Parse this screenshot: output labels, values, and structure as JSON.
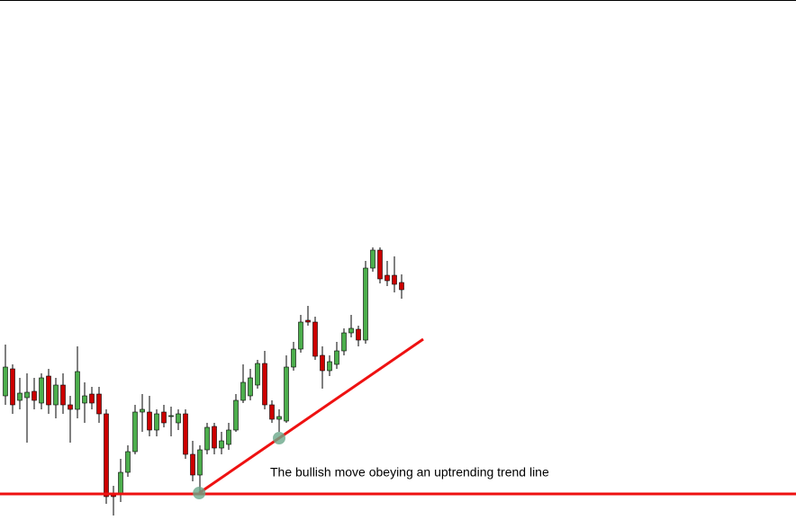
{
  "chart_data": {
    "type": "candlestick",
    "annotation": "The bullish move obeying an uptrending trend line",
    "categories": [
      null,
      null,
      null,
      null,
      null,
      null,
      null,
      null,
      null,
      null,
      null,
      null,
      null,
      null,
      null,
      null,
      null,
      null,
      null,
      null,
      null,
      null,
      null,
      null,
      null,
      null,
      null,
      null,
      null,
      null,
      null,
      null,
      null,
      null,
      null,
      null,
      null,
      null,
      null,
      null,
      null,
      null,
      null,
      null,
      null,
      null,
      null,
      null,
      null,
      null,
      null,
      null,
      null,
      null,
      null,
      null
    ],
    "open": [
      148,
      178,
      143,
      146,
      153,
      140,
      170,
      138,
      160,
      138,
      133,
      140,
      150,
      150,
      128,
      38,
      38,
      63,
      86,
      130,
      130,
      110,
      130,
      125,
      118,
      128,
      83,
      60,
      88,
      114,
      90,
      94,
      110,
      143,
      148,
      160,
      184,
      138,
      122,
      120,
      180,
      200,
      232,
      230,
      193,
      176,
      183,
      198,
      218,
      222,
      210,
      290,
      310,
      282,
      282,
      274
    ],
    "close": [
      180,
      138,
      151,
      152,
      143,
      168,
      138,
      160,
      138,
      133,
      175,
      148,
      140,
      128,
      36,
      36,
      63,
      86,
      130,
      133,
      110,
      128,
      118,
      126,
      128,
      83,
      60,
      88,
      113,
      90,
      98,
      110,
      143,
      163,
      168,
      184,
      138,
      122,
      125,
      180,
      200,
      230,
      230,
      192,
      176,
      186,
      198,
      218,
      223,
      210,
      290,
      310,
      278,
      276,
      272,
      266
    ],
    "high": [
      205,
      183,
      168,
      173,
      168,
      173,
      178,
      168,
      173,
      148,
      203,
      163,
      158,
      158,
      133,
      48,
      78,
      93,
      138,
      150,
      148,
      133,
      138,
      136,
      133,
      133,
      98,
      93,
      118,
      118,
      108,
      118,
      150,
      183,
      178,
      188,
      198,
      143,
      133,
      193,
      208,
      238,
      248,
      236,
      203,
      193,
      208,
      223,
      238,
      226,
      298,
      313,
      313,
      298,
      303,
      283
    ],
    "low": [
      138,
      128,
      133,
      96,
      133,
      133,
      128,
      123,
      128,
      96,
      123,
      118,
      133,
      118,
      28,
      15,
      30,
      58,
      83,
      108,
      103,
      103,
      113,
      103,
      110,
      78,
      53,
      40,
      83,
      83,
      83,
      88,
      108,
      140,
      143,
      156,
      133,
      118,
      108,
      118,
      176,
      196,
      226,
      188,
      156,
      170,
      178,
      193,
      213,
      203,
      206,
      286,
      273,
      270,
      263,
      256
    ],
    "up_color": "#4cae4c",
    "down_color": "#cc0000",
    "wick_color": "#000000",
    "ylim": [
      0,
      588
    ],
    "level": 39,
    "level_color": "#ee1111",
    "trend_line": {
      "x": [
        26.9,
        58
      ],
      "y": [
        40,
        211
      ],
      "color": "#ee1111"
    },
    "touch_points": {
      "x": [
        26.9,
        38
      ],
      "y": [
        40,
        101
      ],
      "color": "#6aa88a"
    }
  }
}
